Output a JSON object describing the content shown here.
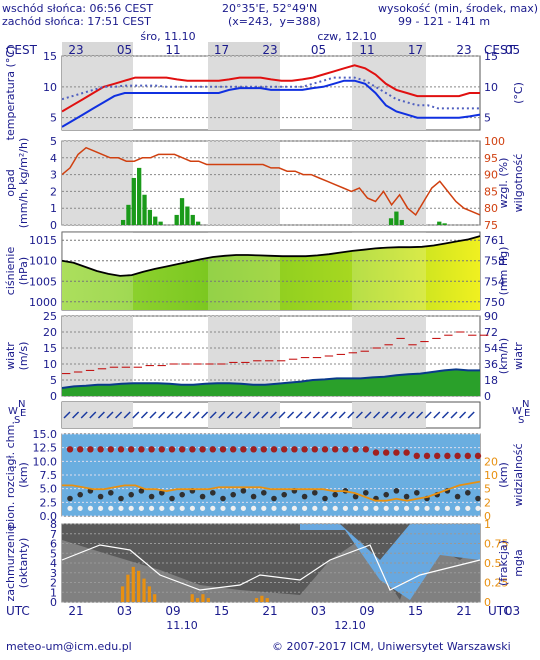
{
  "header": {
    "sunrise": "wschód słońca: 06:56 CEST",
    "sunset": "zachód słońca: 17:51 CEST",
    "coords": "20°35'E, 52°49'N",
    "grid": "(x=243,  y=388)",
    "alt_label": "wysokość (min, środek, max)",
    "alt_values": "99 - 121 - 141 m"
  },
  "timeline": {
    "top_days": [
      "śro, 11.10",
      "czw, 12.10"
    ],
    "top_hours": [
      "23",
      "05",
      "11",
      "17",
      "23",
      "05",
      "11",
      "17",
      "23",
      "05"
    ],
    "bottom_hours": [
      "21",
      "03",
      "09",
      "15",
      "21",
      "03",
      "09",
      "15",
      "21",
      "03"
    ],
    "bottom_days": [
      "11.10",
      "12.10"
    ],
    "tz_top": "CEST",
    "tz_bottom": "UTC"
  },
  "footer": {
    "email": "meteo-um@icm.edu.pl",
    "copyright": "© 2007-2017 ICM, Uniwersytet Warszawski"
  },
  "colors": {
    "axis_text": "#1a1a8c",
    "temp_max": "#e01010",
    "temp_min": "#1030e0",
    "rain": "#1a9a1a",
    "humidity": "#d04010",
    "pressure": "#000000",
    "wind": "#0a3a8a",
    "gust": "#c00000",
    "visibility": "#e89010",
    "fog": "#e89010"
  },
  "chart_data": [
    {
      "type": "line",
      "panel": "temperature",
      "ylabel_left": "temperatura (°C)",
      "ylabel_right": "(°C)",
      "ylim": [
        3,
        15
      ],
      "yticks": [
        5,
        10,
        15
      ],
      "series": [
        {
          "values": [
            6,
            7,
            8,
            9,
            10,
            10.5,
            11,
            11.5,
            11.5,
            11.5,
            11.5,
            11.2,
            11,
            11,
            11,
            11,
            11.2,
            11.5,
            11.5,
            11.5,
            11.2,
            11,
            11,
            11.2,
            11.5,
            12,
            12.5,
            13,
            13.5,
            13,
            12,
            10.5,
            9.5,
            9,
            8.5,
            8.5,
            8.5,
            8.5,
            8.5,
            9,
            9
          ]
        },
        {
          "values": [
            8,
            8.5,
            9,
            9.5,
            10,
            10,
            10.2,
            10.2,
            10.2,
            10.2,
            10,
            10,
            10,
            10,
            10,
            10,
            10,
            10,
            10,
            10,
            10,
            10,
            10,
            10,
            10.5,
            11,
            11.5,
            11.5,
            11.5,
            11,
            10,
            9,
            8,
            7.5,
            7,
            7,
            6.5,
            6.5,
            6.5,
            6.5,
            6.5
          ]
        },
        {
          "values": [
            3.5,
            4.5,
            5.5,
            6.5,
            7.5,
            8.5,
            9,
            9,
            9,
            9,
            9,
            9,
            9,
            9,
            9,
            9,
            9.5,
            9.8,
            9.8,
            9.8,
            9.5,
            9.5,
            9.5,
            9.5,
            9.8,
            10,
            10.5,
            11,
            11,
            10.5,
            9,
            7,
            6,
            5.5,
            5,
            5,
            5,
            5,
            5,
            5.2,
            5.5
          ]
        }
      ]
    },
    {
      "type": "bar",
      "panel": "precipitation",
      "ylabel_left": "opad (mm/h, kg/m²/h)",
      "ylabel_right": "wilgotność wzgl. (%)",
      "ylim": [
        0,
        5
      ],
      "yticks": [
        0,
        1,
        2,
        3,
        4,
        5
      ],
      "y2lim": [
        75,
        100
      ],
      "y2ticks": [
        75,
        80,
        85,
        90,
        95,
        100
      ],
      "rain_values": [
        0,
        0,
        0,
        0,
        0,
        0,
        0,
        0,
        0,
        0,
        0,
        0.3,
        1.2,
        2.8,
        3.4,
        1.8,
        0.9,
        0.5,
        0.2,
        0,
        0,
        0.6,
        1.6,
        1.1,
        0.6,
        0.2,
        0,
        0,
        0,
        0,
        0,
        0,
        0,
        0,
        0,
        0,
        0,
        0,
        0,
        0,
        0,
        0,
        0,
        0,
        0,
        0,
        0,
        0,
        0,
        0,
        0,
        0,
        0,
        0,
        0,
        0,
        0,
        0,
        0,
        0,
        0,
        0.4,
        0.8,
        0.3,
        0,
        0,
        0,
        0,
        0,
        0,
        0.2,
        0.1,
        0,
        0,
        0,
        0,
        0,
        0
      ],
      "humidity_values": [
        90,
        92,
        96,
        98,
        97,
        96,
        95,
        95,
        94,
        94,
        95,
        95,
        96,
        96,
        96,
        95,
        94,
        94,
        93,
        93,
        93,
        93,
        93,
        93,
        93,
        93,
        92,
        92,
        91,
        91,
        90,
        90,
        89,
        88,
        87,
        86,
        85,
        86,
        83,
        82,
        85,
        81,
        84,
        80,
        78,
        82,
        86,
        88,
        85,
        82,
        80,
        79,
        78
      ]
    },
    {
      "type": "area",
      "panel": "pressure",
      "ylabel_left": "ciśnienie (hPa)",
      "ylabel_right": "(mm Hg)",
      "ylim": [
        998,
        1017
      ],
      "yticks": [
        1000,
        1005,
        1010,
        1015
      ],
      "y2ticks": [
        "750",
        "754",
        "758",
        "761"
      ],
      "values": [
        1010,
        1009.5,
        1008.5,
        1007.5,
        1006.8,
        1006.3,
        1006.5,
        1007.3,
        1008,
        1008.6,
        1009.2,
        1009.8,
        1010.4,
        1010.9,
        1011.2,
        1011.4,
        1011.4,
        1011.3,
        1011.2,
        1011.1,
        1011.1,
        1011.1,
        1011.3,
        1011.6,
        1012,
        1012.4,
        1012.7,
        1013,
        1013.2,
        1013.3,
        1013.3,
        1013.4,
        1013.7,
        1014.2,
        1014.7,
        1015.2,
        1016
      ]
    },
    {
      "type": "line",
      "panel": "wind",
      "ylabel_left": "wiatr (m/s)",
      "ylabel_right": "(km/h) wiatr",
      "ylim": [
        0,
        25
      ],
      "yticks": [
        0,
        5,
        10,
        15,
        20,
        25
      ],
      "y2ticks": [
        "0",
        "18",
        "36",
        "54",
        "72",
        "90"
      ],
      "wind_values": [
        2.5,
        3,
        3.2,
        3.5,
        3.5,
        3.8,
        4,
        4,
        4,
        3.8,
        3.5,
        3.5,
        3.8,
        4,
        4,
        3.8,
        3.5,
        3.5,
        3.8,
        4.2,
        4.5,
        5,
        5.2,
        5.5,
        5.5,
        5.5,
        5.8,
        6,
        6.5,
        6.8,
        7,
        7.5,
        8,
        8.3,
        8,
        8
      ],
      "gust_values": [
        7,
        7.5,
        8,
        8.5,
        9,
        9,
        9,
        9.5,
        9.5,
        10,
        10,
        10,
        10,
        10,
        10.5,
        10.5,
        11,
        11,
        11,
        11.5,
        12,
        12,
        12.5,
        13,
        13.5,
        14,
        15,
        16,
        18,
        16,
        17,
        18,
        19,
        20,
        19,
        19
      ]
    },
    {
      "type": "scatter",
      "panel": "wind_direction",
      "ylabel_left": "W S N E",
      "ylabel_right": "W S N E"
    },
    {
      "type": "scatter",
      "panel": "cloud_base",
      "ylabel_left": "pion. rozciągł. chm. (km)",
      "ylabel_right": "(km) widzialność",
      "ylim": [
        0,
        15
      ],
      "yticks": [
        "0.0",
        "2.5",
        "5.0",
        "7.5",
        "10.0",
        "12.5",
        "15.0"
      ],
      "y2ticks": [
        "0",
        "2",
        "5",
        "10",
        "20"
      ],
      "visibility_values": [
        8,
        8,
        7.5,
        7,
        7,
        7.5,
        8,
        8,
        7,
        7,
        6.5,
        7,
        7,
        7,
        7,
        7.5,
        7.5,
        7.5,
        7.5,
        7.5,
        7,
        7,
        7,
        7,
        7,
        7,
        6.5,
        6.5,
        6,
        5,
        4,
        4,
        4.5,
        4,
        4.5,
        5,
        6,
        7,
        8,
        8.5,
        9
      ]
    },
    {
      "type": "area",
      "panel": "cloudiness",
      "ylabel_left": "zachmurzenie (oktanty)",
      "ylabel_right": "(frakcja) mgła",
      "ylim": [
        0,
        8
      ],
      "yticks": [
        0,
        1,
        2,
        3,
        4,
        5,
        6,
        7,
        8
      ],
      "y2ticks": [
        "0",
        "0.25",
        "0.5",
        "0.75",
        "1"
      ],
      "fog_values": [
        0,
        0,
        0,
        0,
        0,
        0,
        0,
        0,
        0,
        0,
        0,
        0.2,
        0.35,
        0.45,
        0.4,
        0.3,
        0.2,
        0.1,
        0,
        0,
        0,
        0,
        0,
        0,
        0.1,
        0.05,
        0.1,
        0.05,
        0,
        0,
        0,
        0,
        0,
        0,
        0,
        0,
        0.05,
        0.08,
        0.05,
        0,
        0,
        0,
        0,
        0,
        0,
        0,
        0,
        0,
        0,
        0,
        0,
        0,
        0,
        0,
        0,
        0,
        0,
        0,
        0,
        0,
        0,
        0,
        0,
        0,
        0,
        0,
        0,
        0,
        0,
        0,
        0,
        0,
        0,
        0,
        0,
        0,
        0,
        0
      ]
    }
  ]
}
